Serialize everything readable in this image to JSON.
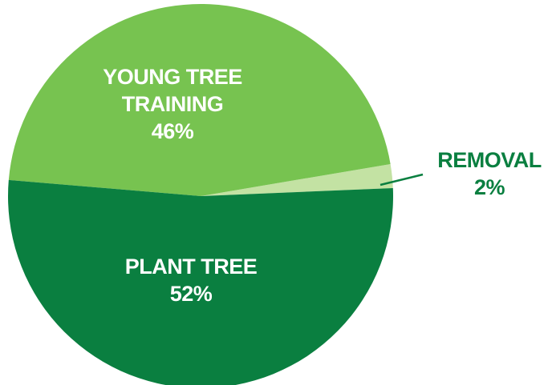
{
  "chart_data": {
    "type": "pie",
    "categories": [
      "REMOVAL",
      "YOUNG TREE TRAINING",
      "PLANT TREE"
    ],
    "values": [
      2,
      46,
      52
    ],
    "value_labels": [
      "2%",
      "46%",
      "52%"
    ],
    "colors": [
      "#c3e2a3",
      "#77c350",
      "#0a7f40"
    ]
  }
}
